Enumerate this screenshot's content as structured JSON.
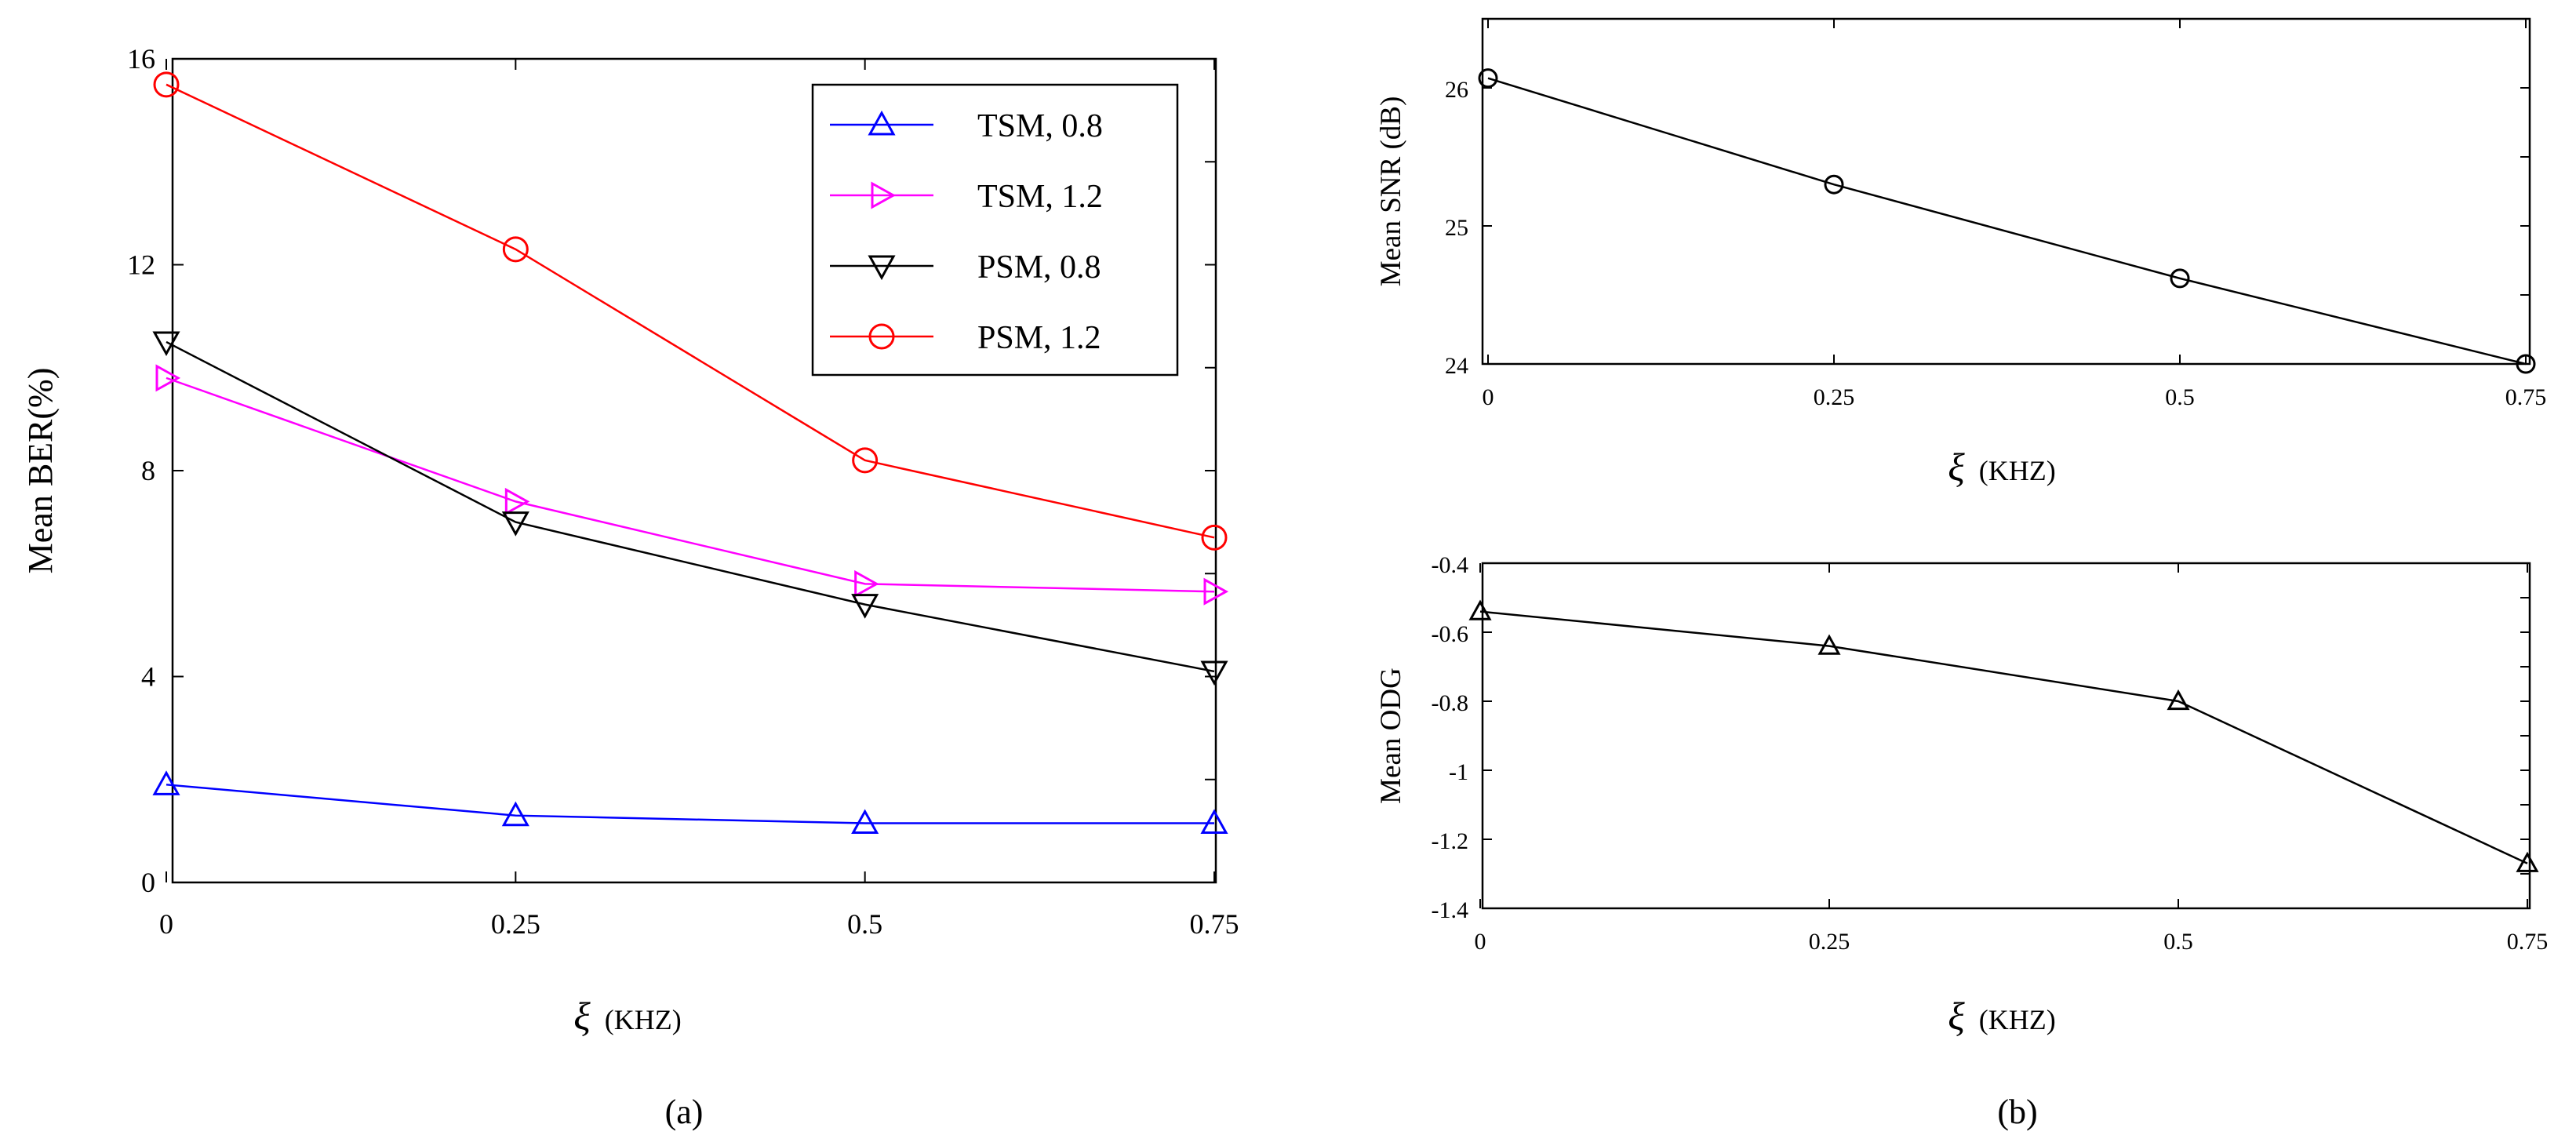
{
  "figure": {
    "panel_a_label": "(a)",
    "panel_b_label": "(b)"
  },
  "chart_data": [
    {
      "type": "line",
      "panel": "(a)",
      "title": "",
      "xlabel_symbol": "ξ",
      "xlabel_unit": "(KHZ)",
      "ylabel": "Mean BER(%)",
      "x": [
        0,
        0.25,
        0.5,
        0.75
      ],
      "x_tick_labels": [
        "0",
        "0.25",
        "0.5",
        "0.75"
      ],
      "xlim": [
        0,
        0.75
      ],
      "ylim": [
        0,
        16
      ],
      "y_ticks": [
        0,
        4,
        8,
        12,
        16
      ],
      "y_tick_labels": [
        "0",
        "4",
        "8",
        "12",
        "16"
      ],
      "legend_position": "top-right",
      "series": [
        {
          "name": "TSM, 0.8",
          "values": [
            1.9,
            1.3,
            1.15,
            1.15
          ],
          "color": "#0000ff",
          "marker": "triangle-up"
        },
        {
          "name": "TSM, 1.2",
          "values": [
            9.8,
            7.4,
            5.8,
            5.65
          ],
          "color": "#ff00ff",
          "marker": "triangle-right"
        },
        {
          "name": "PSM, 0.8",
          "values": [
            10.5,
            7.0,
            5.4,
            4.1
          ],
          "color": "#000000",
          "marker": "triangle-down"
        },
        {
          "name": "PSM, 1.2",
          "values": [
            15.5,
            12.3,
            8.2,
            6.7
          ],
          "color": "#ff0000",
          "marker": "circle"
        }
      ]
    },
    {
      "type": "line",
      "panel": "(b) top",
      "title": "",
      "xlabel_symbol": "ξ",
      "xlabel_unit": "(KHZ)",
      "ylabel": "Mean SNR (dB)",
      "x": [
        0,
        0.25,
        0.5,
        0.75
      ],
      "x_tick_labels": [
        "0",
        "0.25",
        "0.5",
        "0.75"
      ],
      "xlim": [
        0,
        0.75
      ],
      "ylim": [
        24,
        26.5
      ],
      "y_ticks": [
        24,
        25,
        26
      ],
      "y_tick_labels": [
        "24",
        "25",
        "26"
      ],
      "series": [
        {
          "name": "Mean SNR",
          "values": [
            26.07,
            25.3,
            24.62,
            24.0
          ],
          "color": "#000000",
          "marker": "circle"
        }
      ]
    },
    {
      "type": "line",
      "panel": "(b) bottom",
      "title": "",
      "xlabel_symbol": "ξ",
      "xlabel_unit": "(KHZ)",
      "ylabel": "Mean ODG",
      "x": [
        0,
        0.25,
        0.5,
        0.75
      ],
      "x_tick_labels": [
        "0",
        "0.25",
        "0.5",
        "0.75"
      ],
      "xlim": [
        0,
        0.75
      ],
      "ylim": [
        -1.4,
        -0.4
      ],
      "y_ticks": [
        -1.4,
        -1.2,
        -1.0,
        -0.8,
        -0.6,
        -0.4
      ],
      "y_tick_labels": [
        "-1.4",
        "-1.2",
        "-1",
        "-0.8",
        "-0.6",
        "-0.4"
      ],
      "series": [
        {
          "name": "Mean ODG",
          "values": [
            -0.54,
            -0.64,
            -0.8,
            -1.27
          ],
          "color": "#000000",
          "marker": "triangle-up"
        }
      ]
    }
  ]
}
